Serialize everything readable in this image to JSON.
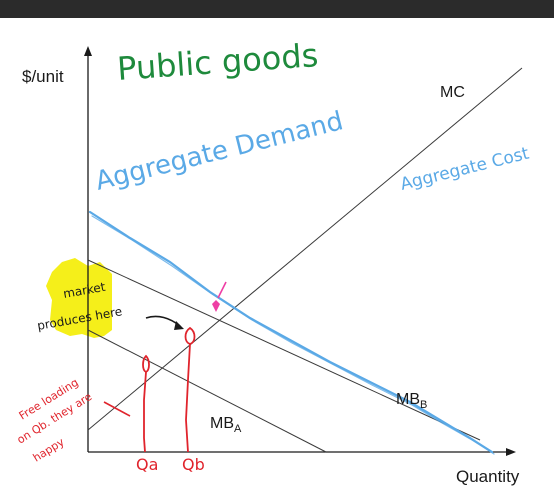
{
  "axes": {
    "y_label": "$/unit",
    "x_label": "Quantity"
  },
  "curves": {
    "mc": "MC",
    "mb_b": {
      "base": "MB",
      "sub": "B"
    },
    "mb_a": {
      "base": "MB",
      "sub": "A"
    }
  },
  "annotations": {
    "title": "Public goods",
    "aggregate_demand": "Aggregate Demand",
    "aggregate_cost": "Aggregate Cost",
    "market_line1": "market",
    "market_line2": "produces here",
    "free_line1": "Free loading",
    "free_line2": "on Qb. they are",
    "free_line3": "happy",
    "qa": "Qa",
    "qb": "Qb"
  },
  "colors": {
    "background_border": "#2b2b2b",
    "paper": "#ffffff",
    "ink": "#1a1a1a",
    "demand_blue": "#5aa9e6",
    "annot_green": "#1e8a3c",
    "annot_red": "#e0242c",
    "highlight_yellow": "#f5ef1a",
    "pink_marker": "#ee3fa4"
  }
}
